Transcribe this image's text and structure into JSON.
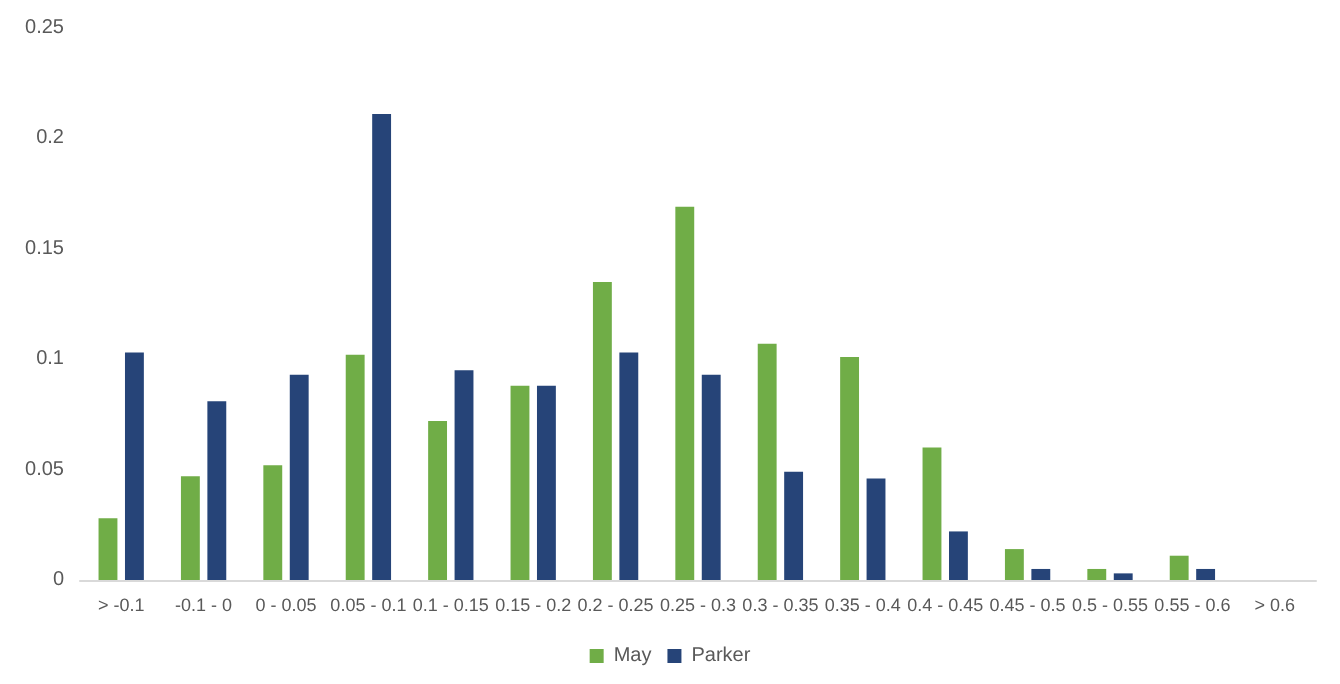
{
  "chart_data": {
    "type": "bar",
    "categories": [
      "> -0.1",
      "-0.1 - 0",
      "0 - 0.05",
      "0.05 - 0.1",
      "0.1 - 0.15",
      "0.15 - 0.2",
      "0.2 - 0.25",
      "0.25 - 0.3",
      "0.3 - 0.35",
      "0.35 - 0.4",
      "0.4 - 0.45",
      "0.45 - 0.5",
      "0.5 - 0.55",
      "0.55 - 0.6",
      "> 0.6"
    ],
    "series": [
      {
        "name": "May",
        "color": "#70ad47",
        "values": [
          0.028,
          0.047,
          0.052,
          0.102,
          0.072,
          0.088,
          0.135,
          0.169,
          0.107,
          0.101,
          0.06,
          0.014,
          0.005,
          0.011,
          0
        ]
      },
      {
        "name": "Parker",
        "color": "#264478",
        "values": [
          0.103,
          0.081,
          0.093,
          0.211,
          0.095,
          0.088,
          0.103,
          0.093,
          0.049,
          0.046,
          0.022,
          0.005,
          0.003,
          0.005,
          0
        ]
      }
    ],
    "ylim": [
      0,
      0.25
    ],
    "yticks": [
      0,
      0.05,
      0.1,
      0.15,
      0.2,
      0.25
    ],
    "grid": false,
    "legend": "bottom"
  }
}
